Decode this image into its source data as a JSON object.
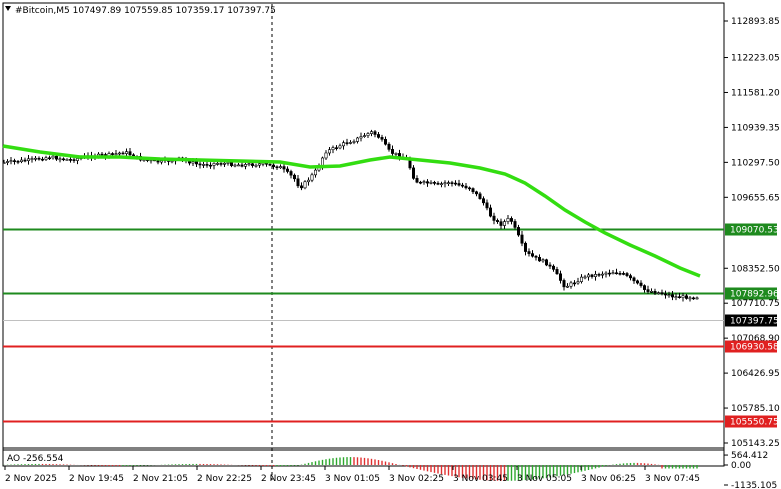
{
  "symbol": {
    "icon": "triangle-down-icon",
    "text": "#Bitcoin,M5  107497.89 107559.85 107359.17 107397.75"
  },
  "price_axis": {
    "ticks": [
      "112893.85",
      "112223.05",
      "111581.20",
      "110939.35",
      "110297.50",
      "109655.65",
      "108352.50",
      "107710.75",
      "107068.90",
      "106426.95",
      "105785.10",
      "105143.25"
    ]
  },
  "levels": [
    {
      "label": "109070.53",
      "color": "#1e8a1e"
    },
    {
      "label": "107892.96",
      "color": "#1e8a1e"
    },
    {
      "label": "106930.58",
      "color": "#e02020"
    },
    {
      "label": "105550.75",
      "color": "#e02020"
    }
  ],
  "current_price": {
    "label": "107397.75",
    "color": "#000000"
  },
  "ma_color": "#33dd11",
  "indicator": {
    "label": "AO -256.554",
    "ticks": [
      "564.412",
      "0.00",
      "-1135.105"
    ],
    "up_color": "#2ea82e",
    "down_color": "#e03030"
  },
  "time_axis": {
    "labels": [
      "2 Nov 2025",
      "2 Nov 19:45",
      "2 Nov 21:05",
      "2 Nov 22:25",
      "2 Nov 23:45",
      "3 Nov 01:05",
      "3 Nov 02:25",
      "3 Nov 03:45",
      "3 Nov 05:05",
      "3 Nov 06:25",
      "3 Nov 07:45"
    ]
  }
}
